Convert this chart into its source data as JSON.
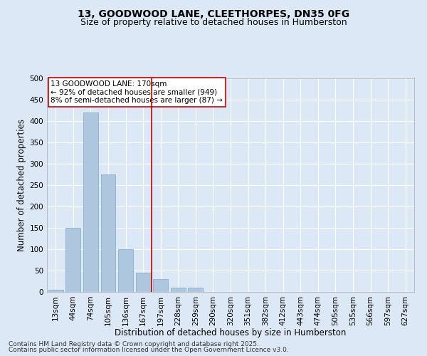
{
  "title1": "13, GOODWOOD LANE, CLEETHORPES, DN35 0FG",
  "title2": "Size of property relative to detached houses in Humberston",
  "xlabel": "Distribution of detached houses by size in Humberston",
  "ylabel": "Number of detached properties",
  "categories": [
    "13sqm",
    "44sqm",
    "74sqm",
    "105sqm",
    "136sqm",
    "167sqm",
    "197sqm",
    "228sqm",
    "259sqm",
    "290sqm",
    "320sqm",
    "351sqm",
    "382sqm",
    "412sqm",
    "443sqm",
    "474sqm",
    "505sqm",
    "535sqm",
    "566sqm",
    "597sqm",
    "627sqm"
  ],
  "values": [
    5,
    150,
    420,
    275,
    100,
    45,
    30,
    10,
    10,
    0,
    0,
    0,
    0,
    0,
    0,
    0,
    0,
    0,
    0,
    0,
    0
  ],
  "bar_color": "#aec6de",
  "bar_edge_color": "#7aaac8",
  "reference_line_x": 5.5,
  "reference_line_color": "#cc0000",
  "annotation_text": "13 GOODWOOD LANE: 170sqm\n← 92% of detached houses are smaller (949)\n8% of semi-detached houses are larger (87) →",
  "annotation_box_facecolor": "#ffffff",
  "annotation_box_edgecolor": "#cc0000",
  "ylim": [
    0,
    500
  ],
  "yticks": [
    0,
    50,
    100,
    150,
    200,
    250,
    300,
    350,
    400,
    450,
    500
  ],
  "footer1": "Contains HM Land Registry data © Crown copyright and database right 2025.",
  "footer2": "Contains public sector information licensed under the Open Government Licence v3.0.",
  "bg_color": "#dce8f5",
  "plot_bg_color": "#dce8f5",
  "grid_color": "#ffffff",
  "title_fontsize": 10,
  "subtitle_fontsize": 9,
  "tick_fontsize": 7.5,
  "label_fontsize": 8.5,
  "annotation_fontsize": 7.5,
  "footer_fontsize": 6.5
}
